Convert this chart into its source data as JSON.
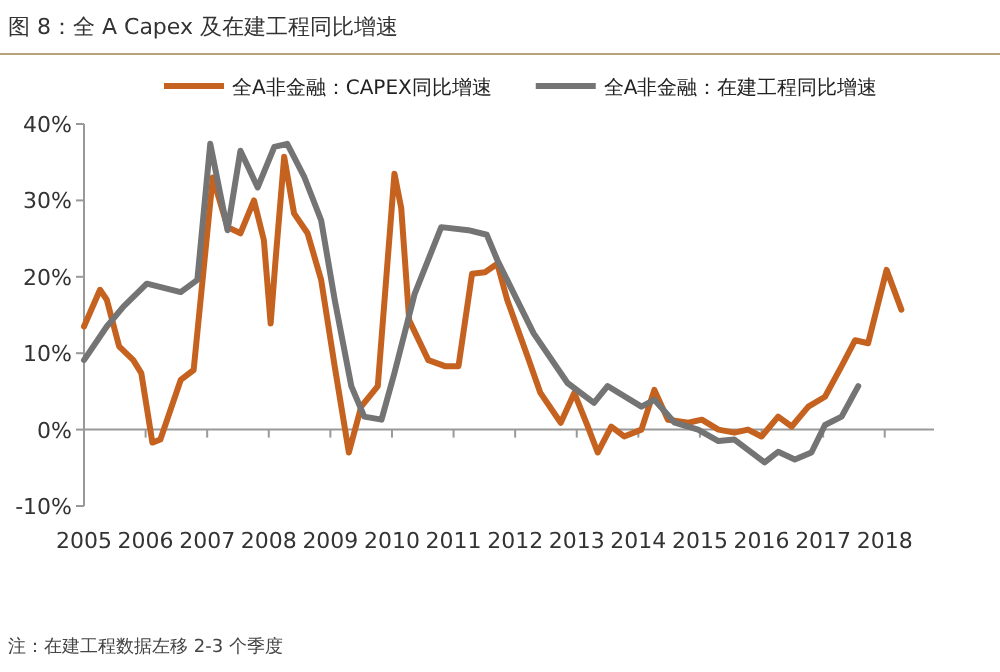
{
  "chart_data": {
    "type": "line",
    "title": "图 8：全 A Capex 及在建工程同比增速",
    "annotations": [
      "注：在建工程数据左移 2-3 个季度"
    ],
    "legend": "top",
    "xlim": [
      2005,
      2018.8
    ],
    "xticks": [
      2005,
      2006,
      2007,
      2008,
      2009,
      2010,
      2011,
      2012,
      2013,
      2014,
      2015,
      2016,
      2017,
      2018
    ],
    "ylim": [
      -10,
      40
    ],
    "yticks": [
      {
        "value": -10,
        "label": "-10%"
      },
      {
        "value": 0,
        "label": "0%"
      },
      {
        "value": 10,
        "label": "10%"
      },
      {
        "value": 20,
        "label": "20%"
      },
      {
        "value": 30,
        "label": "30%"
      },
      {
        "value": 40,
        "label": "40%"
      }
    ],
    "series": [
      {
        "name": "全A非金融：CAPEX同比增速",
        "color": "#c5621f",
        "x": [
          2005.0,
          2005.26,
          2005.37,
          2005.57,
          2005.8,
          2005.93,
          2006.11,
          2006.24,
          2006.57,
          2006.78,
          2007.09,
          2007.33,
          2007.54,
          2007.76,
          2007.92,
          2008.03,
          2008.11,
          2008.25,
          2008.41,
          2008.63,
          2008.85,
          2009.07,
          2009.3,
          2009.5,
          2009.77,
          2010.04,
          2010.15,
          2010.28,
          2010.59,
          2010.86,
          2011.08,
          2011.3,
          2011.51,
          2011.71,
          2011.87,
          2012.2,
          2012.41,
          2012.74,
          2012.96,
          2013.18,
          2013.34,
          2013.56,
          2013.77,
          2014.05,
          2014.26,
          2014.48,
          2014.81,
          2015.03,
          2015.3,
          2015.56,
          2015.78,
          2016.0,
          2016.27,
          2016.49,
          2016.76,
          2017.03,
          2017.3,
          2017.52,
          2017.73,
          2018.03,
          2018.27
        ],
        "values": [
          13.5,
          18.3,
          17,
          10.9,
          9.1,
          7.4,
          -1.7,
          -1.3,
          6.5,
          7.8,
          33,
          26.5,
          25.7,
          30,
          24.8,
          13.9,
          22.2,
          35.7,
          28.3,
          25.7,
          19.6,
          8.3,
          -3,
          3,
          5.7,
          33.5,
          29,
          14.3,
          9.1,
          8.3,
          8.3,
          20.4,
          20.6,
          21.7,
          17,
          9.6,
          4.8,
          0.9,
          4.8,
          0.4,
          -3,
          0.4,
          -0.9,
          0,
          5.2,
          1.3,
          0.9,
          1.3,
          0,
          -0.4,
          0,
          -0.9,
          1.7,
          0.4,
          3,
          4.3,
          8.3,
          11.7,
          11.3,
          20.9,
          15.7
        ]
      },
      {
        "name": "全A非金融：在建工程同比增速",
        "color": "#747474",
        "x": [
          2005.0,
          2005.37,
          2005.64,
          2006.02,
          2006.57,
          2006.84,
          2007.05,
          2007.33,
          2007.54,
          2007.82,
          2008.09,
          2008.3,
          2008.58,
          2008.85,
          2009.07,
          2009.34,
          2009.55,
          2009.83,
          2010.04,
          2010.37,
          2010.8,
          2011.24,
          2011.54,
          2011.71,
          2011.98,
          2012.3,
          2012.85,
          2013.28,
          2013.5,
          2014.05,
          2014.26,
          2014.59,
          2014.97,
          2015.3,
          2015.56,
          2016.05,
          2016.27,
          2016.54,
          2016.81,
          2017.03,
          2017.3,
          2017.57
        ],
        "values": [
          9.1,
          13.5,
          16.1,
          19.1,
          18,
          19.6,
          37.4,
          26.1,
          36.5,
          31.7,
          37,
          37.4,
          33,
          27.4,
          17,
          5.7,
          1.7,
          1.3,
          7.4,
          17.8,
          26.5,
          26.1,
          25.5,
          22.2,
          17.8,
          12.6,
          6.1,
          3.5,
          5.7,
          3,
          3.9,
          0.9,
          0,
          -1.5,
          -1.3,
          -4.3,
          -2.9,
          -3.9,
          -3,
          0.6,
          1.7,
          5.7
        ]
      }
    ]
  }
}
